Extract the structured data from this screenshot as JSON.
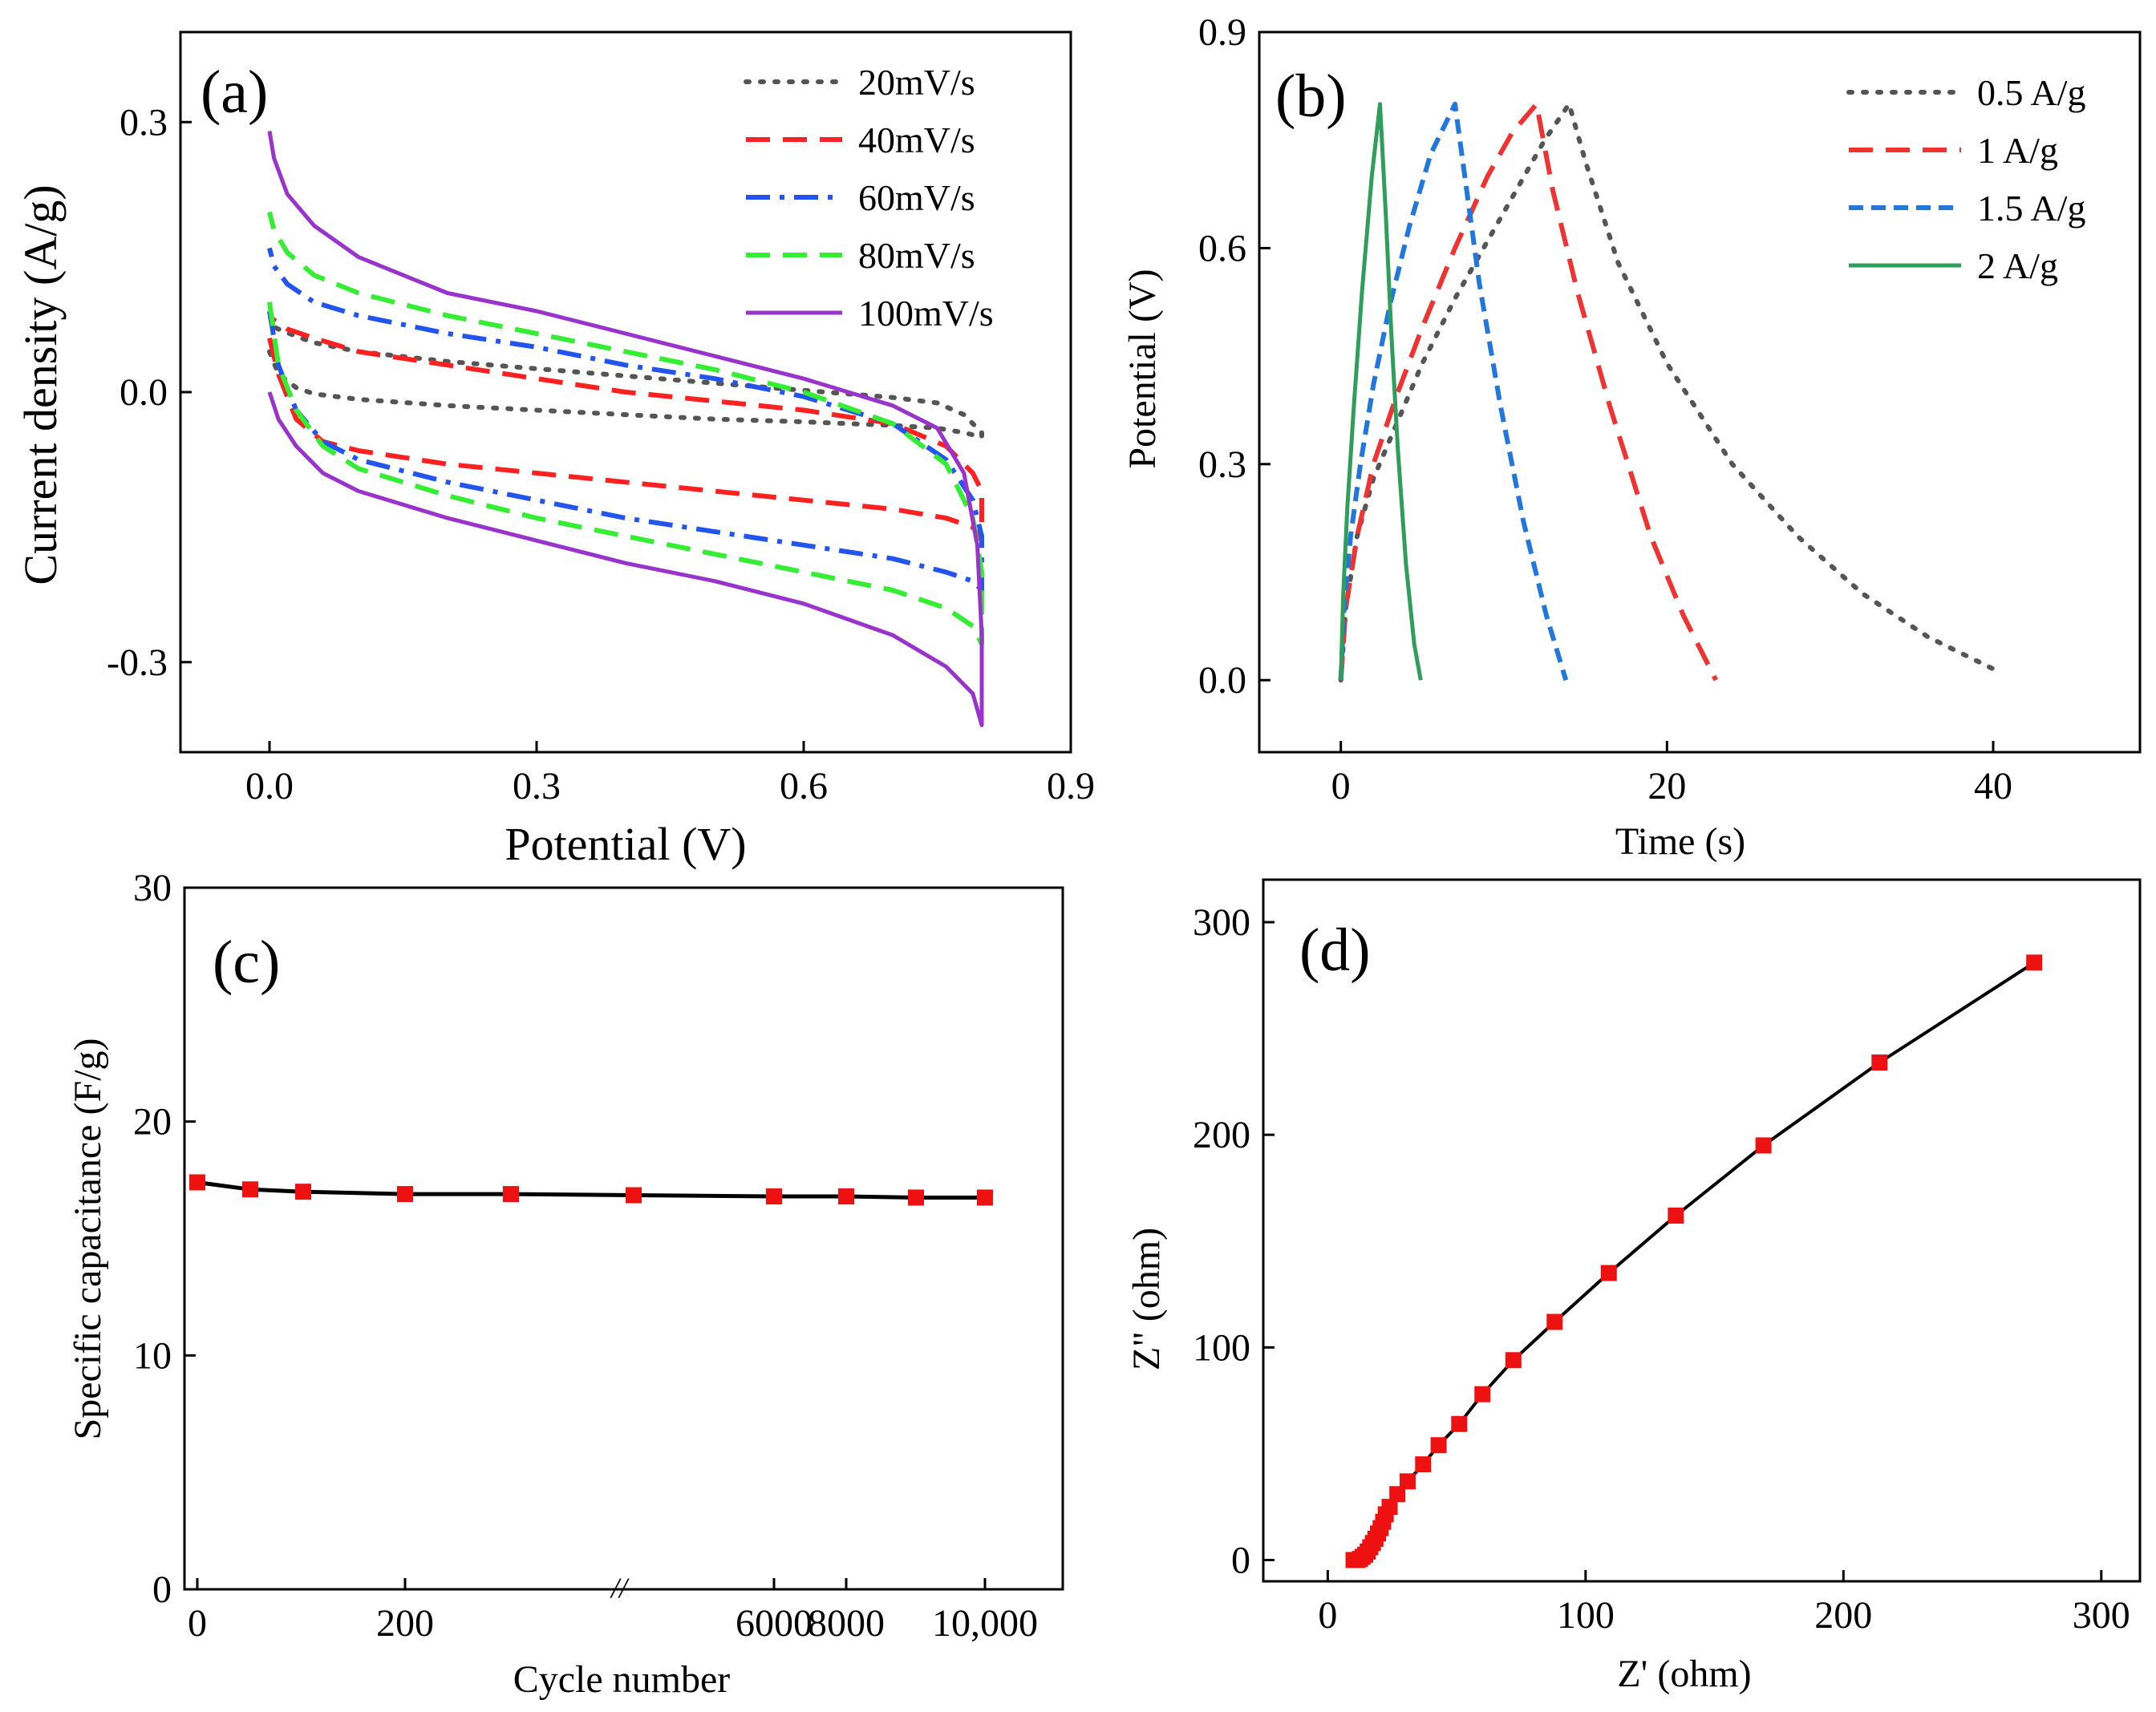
{
  "chart_data": [
    {
      "panel_label": "(a)",
      "type": "line",
      "xlabel": "Potential (V)",
      "ylabel": "Current density (A/g)",
      "xlim": [
        -0.1,
        0.9
      ],
      "ylim": [
        -0.4,
        0.4
      ],
      "xticks": [
        0.0,
        0.3,
        0.6,
        0.9
      ],
      "xtick_labels": [
        "0.0",
        "0.3",
        "0.6",
        "0.9"
      ],
      "yticks": [
        -0.3,
        0.0,
        0.3
      ],
      "ytick_labels": [
        "-0.3",
        "0.0",
        "0.3"
      ],
      "legend_position": "top-right",
      "series": [
        {
          "name": "20mV/s",
          "color": "#555555",
          "dash": "dot",
          "x": [
            0.0,
            0.01,
            0.03,
            0.05,
            0.1,
            0.2,
            0.3,
            0.4,
            0.5,
            0.6,
            0.7,
            0.75,
            0.78,
            0.8,
            0.8,
            0.78,
            0.75,
            0.7,
            0.6,
            0.5,
            0.4,
            0.3,
            0.2,
            0.1,
            0.05,
            0.03,
            0.01,
            0.0
          ],
          "y": [
            0.045,
            0.02,
            0.005,
            -0.002,
            -0.008,
            -0.015,
            -0.02,
            -0.025,
            -0.03,
            -0.033,
            -0.037,
            -0.04,
            -0.045,
            -0.05,
            -0.045,
            -0.025,
            -0.012,
            -0.006,
            0.002,
            0.01,
            0.018,
            0.026,
            0.034,
            0.045,
            0.055,
            0.062,
            0.07,
            0.075
          ]
        },
        {
          "name": "40mV/s",
          "color": "#ff2020",
          "dash": "dash",
          "x": [
            0.0,
            0.01,
            0.03,
            0.06,
            0.1,
            0.2,
            0.3,
            0.4,
            0.5,
            0.6,
            0.7,
            0.76,
            0.79,
            0.8,
            0.8,
            0.79,
            0.76,
            0.7,
            0.6,
            0.5,
            0.4,
            0.3,
            0.2,
            0.1,
            0.05,
            0.02,
            0.005,
            0.0
          ],
          "y": [
            0.06,
            0.02,
            -0.03,
            -0.055,
            -0.065,
            -0.08,
            -0.09,
            -0.1,
            -0.11,
            -0.12,
            -0.13,
            -0.14,
            -0.15,
            -0.165,
            -0.11,
            -0.09,
            -0.06,
            -0.035,
            -0.02,
            -0.01,
            0.0,
            0.015,
            0.03,
            0.045,
            0.06,
            0.07,
            0.08,
            0.085
          ]
        },
        {
          "name": "60mV/s",
          "color": "#2255ee",
          "dash": "dashdot",
          "x": [
            0.0,
            0.01,
            0.03,
            0.06,
            0.1,
            0.2,
            0.3,
            0.4,
            0.5,
            0.6,
            0.7,
            0.76,
            0.79,
            0.8,
            0.8,
            0.79,
            0.76,
            0.7,
            0.6,
            0.5,
            0.4,
            0.3,
            0.2,
            0.1,
            0.05,
            0.02,
            0.005,
            0.0
          ],
          "y": [
            0.09,
            0.03,
            -0.02,
            -0.055,
            -0.075,
            -0.1,
            -0.12,
            -0.14,
            -0.155,
            -0.17,
            -0.185,
            -0.2,
            -0.21,
            -0.22,
            -0.16,
            -0.12,
            -0.075,
            -0.035,
            -0.005,
            0.015,
            0.03,
            0.05,
            0.065,
            0.085,
            0.1,
            0.12,
            0.14,
            0.16
          ]
        },
        {
          "name": "80mV/s",
          "color": "#33ee33",
          "dash": "dash",
          "x": [
            0.0,
            0.01,
            0.03,
            0.06,
            0.1,
            0.2,
            0.3,
            0.4,
            0.5,
            0.6,
            0.7,
            0.76,
            0.79,
            0.8,
            0.8,
            0.79,
            0.76,
            0.7,
            0.6,
            0.5,
            0.4,
            0.3,
            0.2,
            0.1,
            0.05,
            0.02,
            0.005,
            0.0
          ],
          "y": [
            0.1,
            0.03,
            -0.02,
            -0.06,
            -0.085,
            -0.115,
            -0.14,
            -0.16,
            -0.18,
            -0.2,
            -0.22,
            -0.24,
            -0.26,
            -0.28,
            -0.2,
            -0.14,
            -0.08,
            -0.035,
            0.0,
            0.025,
            0.045,
            0.065,
            0.085,
            0.11,
            0.13,
            0.155,
            0.18,
            0.2
          ]
        },
        {
          "name": "100mV/s",
          "color": "#9933cc",
          "dash": "solid",
          "x": [
            0.0,
            0.01,
            0.03,
            0.06,
            0.1,
            0.2,
            0.3,
            0.4,
            0.5,
            0.6,
            0.7,
            0.76,
            0.79,
            0.8,
            0.8,
            0.795,
            0.78,
            0.75,
            0.7,
            0.6,
            0.5,
            0.4,
            0.3,
            0.2,
            0.1,
            0.05,
            0.02,
            0.005,
            0.0
          ],
          "y": [
            0.0,
            -0.03,
            -0.06,
            -0.09,
            -0.11,
            -0.14,
            -0.165,
            -0.19,
            -0.21,
            -0.235,
            -0.27,
            -0.305,
            -0.335,
            -0.37,
            -0.27,
            -0.17,
            -0.09,
            -0.04,
            -0.015,
            0.015,
            0.04,
            0.065,
            0.09,
            0.11,
            0.15,
            0.185,
            0.22,
            0.26,
            0.29
          ]
        }
      ]
    },
    {
      "panel_label": "(b)",
      "type": "line",
      "xlabel": "Time (s)",
      "ylabel": "Potential (V)",
      "xlim": [
        -5,
        49
      ],
      "ylim": [
        -0.1,
        0.9
      ],
      "xticks": [
        0,
        20,
        40
      ],
      "xtick_labels": [
        "0",
        "20",
        "40"
      ],
      "yticks": [
        0.0,
        0.3,
        0.6,
        0.9
      ],
      "ytick_labels": [
        "0.0",
        "0.3",
        "0.6",
        "0.9"
      ],
      "legend_position": "top-right",
      "series": [
        {
          "name": "0.5 A/g",
          "color": "#555555",
          "dash": "dot",
          "x": [
            0.0,
            0.3,
            1.0,
            2.0,
            3.5,
            5.0,
            7.0,
            9.0,
            11.0,
            12.5,
            14.0,
            15.0,
            17.0,
            20.0,
            24.0,
            28.0,
            32.0,
            36.0,
            40.5
          ],
          "y": [
            0.0,
            0.1,
            0.2,
            0.28,
            0.36,
            0.44,
            0.53,
            0.61,
            0.69,
            0.75,
            0.8,
            0.72,
            0.58,
            0.44,
            0.3,
            0.2,
            0.12,
            0.06,
            0.01
          ]
        },
        {
          "name": "1 A/g",
          "color": "#ee3333",
          "dash": "dash",
          "x": [
            0.0,
            0.3,
            1.0,
            2.0,
            3.5,
            5.0,
            7.0,
            9.0,
            10.5,
            12.0,
            13.0,
            14.5,
            16.5,
            19.0,
            21.0,
            23.0
          ],
          "y": [
            0.0,
            0.1,
            0.2,
            0.3,
            0.4,
            0.49,
            0.6,
            0.7,
            0.76,
            0.8,
            0.68,
            0.54,
            0.38,
            0.2,
            0.09,
            0.0
          ]
        },
        {
          "name": "1.5 A/g",
          "color": "#2277dd",
          "dash": "dash-short",
          "x": [
            0.0,
            0.2,
            0.6,
            1.2,
            2.0,
            3.0,
            4.2,
            5.5,
            7.0,
            7.6,
            8.5,
            9.8,
            11.2,
            12.6,
            13.8
          ],
          "y": [
            0.0,
            0.1,
            0.2,
            0.3,
            0.41,
            0.52,
            0.63,
            0.73,
            0.8,
            0.7,
            0.55,
            0.38,
            0.22,
            0.09,
            0.0
          ]
        },
        {
          "name": "2 A/g",
          "color": "#2e9e5a",
          "dash": "solid",
          "x": [
            0.0,
            0.15,
            0.4,
            0.8,
            1.3,
            1.9,
            2.4,
            2.75,
            3.1,
            3.5,
            4.0,
            4.5,
            4.9
          ],
          "y": [
            0.0,
            0.12,
            0.24,
            0.38,
            0.54,
            0.7,
            0.8,
            0.65,
            0.48,
            0.32,
            0.16,
            0.05,
            0.0
          ]
        }
      ]
    },
    {
      "panel_label": "(c)",
      "type": "line",
      "xlabel": "Cycle number",
      "ylabel": "Specific capacitance (F/g)",
      "ylim": [
        0,
        30
      ],
      "yticks": [
        0,
        10,
        20,
        30
      ],
      "ytick_labels": [
        "0",
        "10",
        "20",
        "30"
      ],
      "xtick_labels": [
        "0",
        "200",
        "6000",
        "8000",
        "10,000"
      ],
      "axis_break_marker": "//",
      "series": [
        {
          "name": "capacitance",
          "color": "#000000",
          "marker": "square",
          "marker_color": "#ee1111",
          "points": [
            {
              "label": "0",
              "y": 17.4
            },
            {
              "label": "50",
              "y": 17.1
            },
            {
              "label": "100",
              "y": 17.0
            },
            {
              "label": "200",
              "y": 16.9
            },
            {
              "label": "300",
              "y": 16.9
            },
            {
              "label": "5000",
              "y": 16.85
            },
            {
              "label": "7000",
              "y": 16.8
            },
            {
              "label": "8000",
              "y": 16.8
            },
            {
              "label": "9000",
              "y": 16.75
            },
            {
              "label": "10000",
              "y": 16.75
            }
          ]
        }
      ]
    },
    {
      "panel_label": "(d)",
      "type": "scatter",
      "xlabel": "Z' (ohm)",
      "ylabel": "Z\" (ohm)",
      "xlim": [
        -25,
        315
      ],
      "ylim": [
        -10,
        320
      ],
      "xticks": [
        0,
        100,
        200,
        300
      ],
      "xtick_labels": [
        "0",
        "100",
        "200",
        "300"
      ],
      "yticks": [
        0,
        100,
        200,
        300
      ],
      "ytick_labels": [
        "0",
        "100",
        "200",
        "300"
      ],
      "series": [
        {
          "name": "impedance",
          "color": "#000000",
          "marker": "square",
          "marker_color": "#ee1111",
          "x": [
            10.0,
            11.5,
            12.5,
            13.5,
            14.5,
            15.5,
            16.5,
            17.5,
            18.5,
            19.5,
            20.5,
            21.5,
            22.5,
            24.0,
            27.0,
            31.0,
            37.0,
            43.0,
            51.0,
            60.0,
            72.0,
            88.0,
            109.0,
            135.0,
            169.0,
            214.0,
            274.0
          ],
          "y": [
            0.0,
            0.0,
            0.5,
            1.5,
            2.5,
            4.0,
            6.0,
            8.0,
            10.0,
            12.5,
            15.0,
            18.0,
            21.5,
            25.0,
            31.0,
            37.0,
            45.0,
            54.0,
            64.0,
            78.0,
            94.0,
            112.0,
            135.0,
            162.0,
            195.0,
            234.0,
            281.0
          ]
        }
      ]
    }
  ]
}
